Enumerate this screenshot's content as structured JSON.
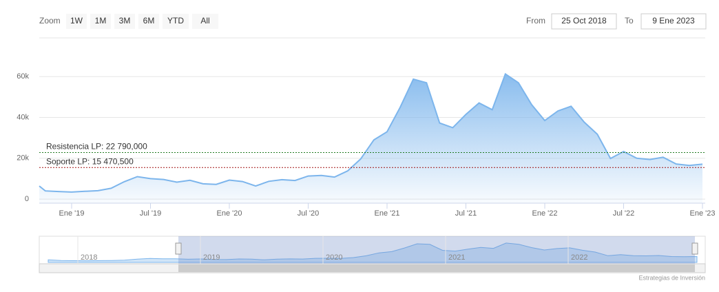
{
  "range_selector": {
    "zoom_label": "Zoom",
    "buttons": [
      "1W",
      "1M",
      "3M",
      "6M",
      "YTD",
      "All"
    ],
    "from_label": "From",
    "from": "25 Oct 2018",
    "to_label": "To",
    "to": "9 Ene 2023"
  },
  "chart_data": {
    "type": "area",
    "color": "#7cb5ec",
    "categories": [
      null,
      null,
      null,
      "Ene '19",
      null,
      null,
      null,
      null,
      null,
      "Jul '19",
      null,
      null,
      null,
      null,
      null,
      "Ene '20",
      null,
      null,
      null,
      null,
      null,
      "Jul '20",
      null,
      null,
      null,
      null,
      null,
      "Ene '21",
      null,
      null,
      null,
      null,
      null,
      "Jul '21",
      null,
      null,
      null,
      null,
      null,
      "Ene '22",
      null,
      null,
      null,
      null,
      null,
      "Jul '22",
      null,
      null,
      null,
      null,
      null,
      "Ene '23"
    ],
    "values": [
      6400,
      4000,
      3700,
      3450,
      3800,
      4100,
      5300,
      8500,
      11000,
      10000,
      9600,
      8300,
      9200,
      7500,
      7200,
      9300,
      8600,
      6400,
      8700,
      9500,
      9100,
      11300,
      11600,
      10800,
      13800,
      19700,
      29000,
      33000,
      45000,
      58800,
      57000,
      37300,
      35000,
      41500,
      47100,
      43800,
      61300,
      57000,
      46300,
      38500,
      43200,
      45500,
      37700,
      31800,
      19900,
      23300,
      20000,
      19400,
      20500,
      17200,
      16500,
      17100
    ],
    "ylim": [
      -2000,
      79000
    ],
    "yticks": [
      0,
      {
        "value": 20000,
        "label": "20k"
      },
      {
        "value": 40000,
        "label": "40k"
      },
      {
        "value": 60000,
        "label": "60k"
      }
    ],
    "grid": true,
    "plot_lines": [
      {
        "label": "Resistencia LP: 22 790,000",
        "value": 22790,
        "color": "#1f7a1f"
      },
      {
        "label": "Soporte LP: 15 470,500",
        "value": 15470.5,
        "color": "#a01010"
      }
    ],
    "navigator_labels": [
      "2018",
      "2019",
      "2020",
      "2021",
      "2022"
    ],
    "credits": "Estrategias de Inversión"
  }
}
